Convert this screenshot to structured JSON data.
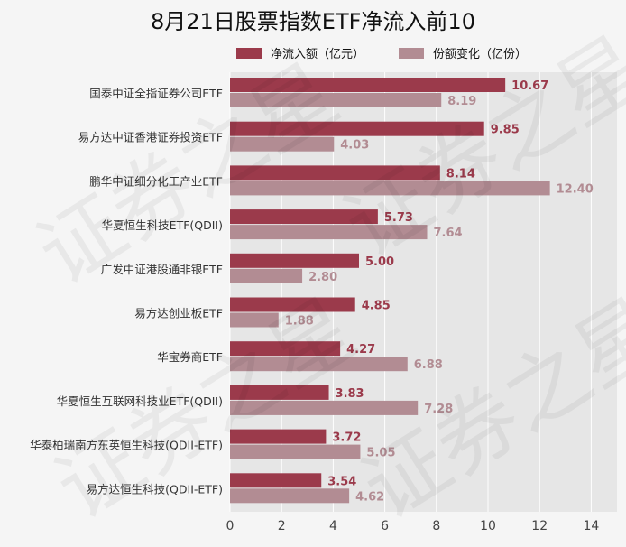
{
  "colors": {
    "net_inflow": "#9b3a4b",
    "share_change": "#b28c93",
    "plot_bg": "#e6e6e6",
    "grid": "#ffffff",
    "watermark": "证券之星"
  },
  "chart_data": {
    "type": "bar",
    "orientation": "horizontal",
    "title": "8月21日股票指数ETF净流入前10",
    "categories": [
      "国泰中证全指证券公司ETF",
      "易方达中证香港证券投资ETF",
      "鹏华中证细分化工产业ETF",
      "华夏恒生科技ETF(QDII)",
      "广发中证港股通非银ETF",
      "易方达创业板ETF",
      "华宝券商ETF",
      "华夏恒生互联网科技业ETF(QDII)",
      "华泰柏瑞南方东英恒生科技(QDII-ETF)",
      "易方达恒生科技(QDII-ETF)"
    ],
    "series": [
      {
        "name": "净流入额（亿元）",
        "values": [
          10.67,
          9.85,
          8.14,
          5.73,
          5.0,
          4.85,
          4.27,
          3.83,
          3.72,
          3.54
        ]
      },
      {
        "name": "份额变化（亿份）",
        "values": [
          8.19,
          4.03,
          12.4,
          7.64,
          2.8,
          1.88,
          6.88,
          7.28,
          5.05,
          4.62
        ]
      }
    ],
    "xlim": [
      0,
      15
    ],
    "xticks": [
      0,
      2,
      4,
      6,
      8,
      10,
      12,
      14
    ],
    "grid": true,
    "legend_position": "top"
  }
}
